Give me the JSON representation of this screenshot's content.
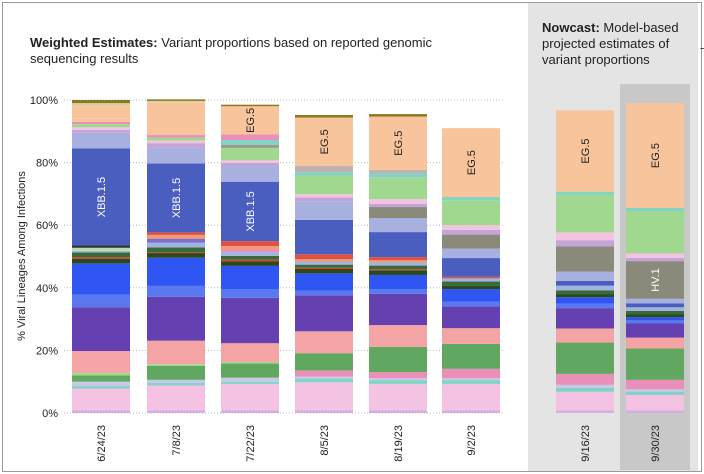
{
  "titles": {
    "left_bold": "Weighted Estimates:",
    "left_rest": " Variant proportions based on reported genomic sequencing results",
    "right_bold": "Nowcast:",
    "right_rest": " Model-based projected estimates of variant proportions",
    "stray_mark": "-"
  },
  "chart_data": {
    "type": "bar",
    "stacked": true,
    "orientation": "vertical",
    "ylabel": "% Viral Lineages Among Infections",
    "ylim": [
      0,
      100
    ],
    "yticks": [
      "0%",
      "20%",
      "40%",
      "60%",
      "80%",
      "100%"
    ],
    "grid": "horizontal dotted",
    "categories": [
      "6/24/23",
      "7/8/23",
      "7/22/23",
      "8/5/23",
      "8/19/23",
      "9/2/23",
      "9/16/23",
      "9/30/23"
    ],
    "groups": [
      {
        "label": "weighted_estimates",
        "categories": [
          "6/24/23",
          "7/8/23",
          "7/22/23",
          "8/5/23",
          "8/19/23",
          "9/2/23"
        ]
      },
      {
        "label": "nowcast",
        "categories": [
          "9/16/23",
          "9/30/23"
        ]
      }
    ],
    "bars": [
      {
        "category": "6/24/23",
        "segments": [
          {
            "value": 0.8,
            "color": "#d4b0e0"
          },
          {
            "value": 7.0,
            "color": "#f4c2e2"
          },
          {
            "value": 0.8,
            "color": "#7fd4c4"
          },
          {
            "value": 1.4,
            "color": "#c8c8ea"
          },
          {
            "value": 2.0,
            "color": "#60a860"
          },
          {
            "value": 0.8,
            "color": "#a0d890"
          },
          {
            "value": 7.0,
            "color": "#f4a4a4"
          },
          {
            "value": 14.0,
            "color": "#6540b0"
          },
          {
            "value": 4.0,
            "color": "#5a78f0"
          },
          {
            "value": 10.0,
            "color": "#2f56f2"
          },
          {
            "value": 1.5,
            "color": "#2a4a1e"
          },
          {
            "value": 0.5,
            "color": "#d83c2e"
          },
          {
            "value": 1.5,
            "color": "#3a6a3a"
          },
          {
            "value": 0.5,
            "color": "#9fb4e0"
          },
          {
            "value": 1.0,
            "color": "#b7e0a8"
          },
          {
            "value": 0.7,
            "color": "#2e2e2e"
          },
          {
            "value": 31.0,
            "color": "#4a5ec0",
            "label": "XBB.1.5"
          },
          {
            "value": 5.0,
            "color": "#a8b0e0"
          },
          {
            "value": 1.0,
            "color": "#c4a4d4"
          },
          {
            "value": 0.8,
            "color": "#f4c2e2"
          },
          {
            "value": 1.0,
            "color": "#a0d890"
          },
          {
            "value": 0.7,
            "color": "#ea8fb8"
          },
          {
            "value": 1.0,
            "color": "#f8c49c"
          },
          {
            "value": 4.0,
            "color": "#f8c49c"
          },
          {
            "value": 1.0,
            "color": "#dcd0a0"
          },
          {
            "value": 1.0,
            "color": "#8a7a20"
          }
        ]
      },
      {
        "category": "7/8/23",
        "segments": [
          {
            "value": 0.8,
            "color": "#d4b0e0"
          },
          {
            "value": 8.0,
            "color": "#f4c2e2"
          },
          {
            "value": 0.8,
            "color": "#7fd4c4"
          },
          {
            "value": 1.0,
            "color": "#c8c8ea"
          },
          {
            "value": 4.5,
            "color": "#60a860"
          },
          {
            "value": 0.5,
            "color": "#a0d890"
          },
          {
            "value": 7.5,
            "color": "#f4a4a4"
          },
          {
            "value": 14.0,
            "color": "#6540b0"
          },
          {
            "value": 3.5,
            "color": "#5a78f0"
          },
          {
            "value": 9.0,
            "color": "#2f56f2"
          },
          {
            "value": 1.5,
            "color": "#2a4a1e"
          },
          {
            "value": 0.3,
            "color": "#d83c2e"
          },
          {
            "value": 1.5,
            "color": "#3a6a3a"
          },
          {
            "value": 1.5,
            "color": "#9fb4e0"
          },
          {
            "value": 1.3,
            "color": "#7d6fd0"
          },
          {
            "value": 1.2,
            "color": "#f49a70"
          },
          {
            "value": 0.8,
            "color": "#e05040"
          },
          {
            "value": 22.0,
            "color": "#4a5ec0",
            "label": "XBB.1.5"
          },
          {
            "value": 5.0,
            "color": "#a8b0e0"
          },
          {
            "value": 1.5,
            "color": "#c4a4d4"
          },
          {
            "value": 0.8,
            "color": "#f4c2e2"
          },
          {
            "value": 1.0,
            "color": "#a0d890"
          },
          {
            "value": 0.8,
            "color": "#ea8fb8"
          },
          {
            "value": 10.5,
            "color": "#f8c49c"
          },
          {
            "value": 0.4,
            "color": "#dcd0a0"
          },
          {
            "value": 0.5,
            "color": "#8a7a20"
          }
        ]
      },
      {
        "category": "7/22/23",
        "segments": [
          {
            "value": 0.8,
            "color": "#d4b0e0"
          },
          {
            "value": 8.5,
            "color": "#f4c2e2"
          },
          {
            "value": 0.7,
            "color": "#7fd4c4"
          },
          {
            "value": 1.3,
            "color": "#c8c8ea"
          },
          {
            "value": 4.5,
            "color": "#60a860"
          },
          {
            "value": 0.5,
            "color": "#a0d890"
          },
          {
            "value": 6.0,
            "color": "#f4a4a4"
          },
          {
            "value": 14.5,
            "color": "#6540b0"
          },
          {
            "value": 2.7,
            "color": "#5a78f0"
          },
          {
            "value": 7.5,
            "color": "#2f56f2"
          },
          {
            "value": 1.5,
            "color": "#2a4a1e"
          },
          {
            "value": 0.5,
            "color": "#d83c2e"
          },
          {
            "value": 1.2,
            "color": "#3a6a3a"
          },
          {
            "value": 1.2,
            "color": "#9fb4e0"
          },
          {
            "value": 1.0,
            "color": "#ea8fb8"
          },
          {
            "value": 0.9,
            "color": "#f49a70"
          },
          {
            "value": 1.6,
            "color": "#e05040"
          },
          {
            "value": 19.0,
            "color": "#4a5ec0",
            "label": "XBB.1.5"
          },
          {
            "value": 5.0,
            "color": "#a8b0e0"
          },
          {
            "value": 1.0,
            "color": "#c4a4d4"
          },
          {
            "value": 0.8,
            "color": "#f4c2e2"
          },
          {
            "value": 4.0,
            "color": "#a0d890"
          },
          {
            "value": 1.0,
            "color": "#9a9a8a"
          },
          {
            "value": 1.5,
            "color": "#7fd4c4"
          },
          {
            "value": 1.8,
            "color": "#ea8fb8"
          },
          {
            "value": 9.0,
            "color": "#f8c49c",
            "label": "EG.5",
            "label_dark": true
          },
          {
            "value": 0.5,
            "color": "#8a7a20"
          }
        ]
      },
      {
        "category": "8/5/23",
        "segments": [
          {
            "value": 0.8,
            "color": "#d4b0e0"
          },
          {
            "value": 9.0,
            "color": "#f4c2e2"
          },
          {
            "value": 1.2,
            "color": "#7fd4c4"
          },
          {
            "value": 0.6,
            "color": "#c8c8ea"
          },
          {
            "value": 2.0,
            "color": "#ea8fb8"
          },
          {
            "value": 5.5,
            "color": "#60a860"
          },
          {
            "value": 7.0,
            "color": "#f4a4a4"
          },
          {
            "value": 11.5,
            "color": "#6540b0"
          },
          {
            "value": 1.5,
            "color": "#5a78f0"
          },
          {
            "value": 5.5,
            "color": "#2f56f2"
          },
          {
            "value": 1.4,
            "color": "#2a4a1e"
          },
          {
            "value": 0.4,
            "color": "#d83c2e"
          },
          {
            "value": 1.0,
            "color": "#3a6a3a"
          },
          {
            "value": 1.0,
            "color": "#9fb4e0"
          },
          {
            "value": 0.8,
            "color": "#f49a70"
          },
          {
            "value": 1.5,
            "color": "#e05040"
          },
          {
            "value": 11.0,
            "color": "#4a5ec0"
          },
          {
            "value": 6.0,
            "color": "#a8b0e0"
          },
          {
            "value": 1.2,
            "color": "#c4a4d4"
          },
          {
            "value": 1.0,
            "color": "#f4c2e2"
          },
          {
            "value": 6.0,
            "color": "#a0d890"
          },
          {
            "value": 1.0,
            "color": "#7fd4c4"
          },
          {
            "value": 2.0,
            "color": "#c0b0b0"
          },
          {
            "value": 15.5,
            "color": "#f8c49c",
            "label": "EG.5",
            "label_dark": true
          },
          {
            "value": 0.8,
            "color": "#8a7a20"
          }
        ]
      },
      {
        "category": "8/19/23",
        "segments": [
          {
            "value": 0.8,
            "color": "#d4b0e0"
          },
          {
            "value": 8.5,
            "color": "#f4c2e2"
          },
          {
            "value": 1.2,
            "color": "#7fd4c4"
          },
          {
            "value": 0.6,
            "color": "#c8c8ea"
          },
          {
            "value": 2.0,
            "color": "#ea8fb8"
          },
          {
            "value": 8.0,
            "color": "#60a860"
          },
          {
            "value": 7.0,
            "color": "#f4a4a4"
          },
          {
            "value": 10.0,
            "color": "#6540b0"
          },
          {
            "value": 1.5,
            "color": "#5a78f0"
          },
          {
            "value": 4.5,
            "color": "#2f56f2"
          },
          {
            "value": 1.5,
            "color": "#2a4a1e"
          },
          {
            "value": 0.3,
            "color": "#d83c2e"
          },
          {
            "value": 1.2,
            "color": "#3a6a3a"
          },
          {
            "value": 1.0,
            "color": "#9fb4e0"
          },
          {
            "value": 0.7,
            "color": "#f49a70"
          },
          {
            "value": 1.0,
            "color": "#e05040"
          },
          {
            "value": 8.0,
            "color": "#4a5ec0"
          },
          {
            "value": 4.5,
            "color": "#a8b0e0"
          },
          {
            "value": 3.5,
            "color": "#8a8a7a"
          },
          {
            "value": 1.0,
            "color": "#c4a4d4"
          },
          {
            "value": 1.5,
            "color": "#f4c2e2"
          },
          {
            "value": 7.0,
            "color": "#a0d890"
          },
          {
            "value": 1.2,
            "color": "#7fd4c4"
          },
          {
            "value": 1.2,
            "color": "#c0b0b0"
          },
          {
            "value": 17.0,
            "color": "#f8c49c",
            "label": "EG.5",
            "label_dark": true
          },
          {
            "value": 0.8,
            "color": "#8a7a20"
          }
        ]
      },
      {
        "category": "9/2/23",
        "segments": [
          {
            "value": 0.8,
            "color": "#d4b0e0"
          },
          {
            "value": 8.5,
            "color": "#f4c2e2"
          },
          {
            "value": 1.2,
            "color": "#7fd4c4"
          },
          {
            "value": 0.6,
            "color": "#c8c8ea"
          },
          {
            "value": 3.0,
            "color": "#ea8fb8"
          },
          {
            "value": 8.0,
            "color": "#60a860"
          },
          {
            "value": 5.0,
            "color": "#f4a4a4"
          },
          {
            "value": 7.0,
            "color": "#6540b0"
          },
          {
            "value": 1.5,
            "color": "#5a78f0"
          },
          {
            "value": 4.0,
            "color": "#2f56f2"
          },
          {
            "value": 1.0,
            "color": "#2a4a1e"
          },
          {
            "value": 1.4,
            "color": "#3a6a3a"
          },
          {
            "value": 1.0,
            "color": "#9fb4e0"
          },
          {
            "value": 0.5,
            "color": "#e05040"
          },
          {
            "value": 6.0,
            "color": "#4a5ec0"
          },
          {
            "value": 3.0,
            "color": "#a8b0e0"
          },
          {
            "value": 4.5,
            "color": "#8a8a7a"
          },
          {
            "value": 1.5,
            "color": "#c4a4d4"
          },
          {
            "value": 1.5,
            "color": "#f4c2e2"
          },
          {
            "value": 8.0,
            "color": "#a0d890"
          },
          {
            "value": 1.0,
            "color": "#7fd4c4"
          },
          {
            "value": 22.0,
            "color": "#f8c49c",
            "label": "EG.5",
            "label_dark": true
          }
        ]
      },
      {
        "category": "9/16/23",
        "segments": [
          {
            "value": 0.8,
            "color": "#d4b0e0"
          },
          {
            "value": 6.0,
            "color": "#f4c2e2"
          },
          {
            "value": 1.2,
            "color": "#7fd4c4"
          },
          {
            "value": 1.0,
            "color": "#c8c8ea"
          },
          {
            "value": 3.5,
            "color": "#ea8fb8"
          },
          {
            "value": 10.0,
            "color": "#60a860"
          },
          {
            "value": 4.5,
            "color": "#f4a4a4"
          },
          {
            "value": 6.5,
            "color": "#6540b0"
          },
          {
            "value": 1.5,
            "color": "#5a78f0"
          },
          {
            "value": 2.0,
            "color": "#2f56f2"
          },
          {
            "value": 1.0,
            "color": "#2a4a1e"
          },
          {
            "value": 1.2,
            "color": "#3a6a3a"
          },
          {
            "value": 1.5,
            "color": "#9fb4e0"
          },
          {
            "value": 1.5,
            "color": "#4a5ec0"
          },
          {
            "value": 3.0,
            "color": "#a8b0e0"
          },
          {
            "value": 8.0,
            "color": "#8a8a7a"
          },
          {
            "value": 2.0,
            "color": "#c4a4d4"
          },
          {
            "value": 2.5,
            "color": "#f4c2e2"
          },
          {
            "value": 12.0,
            "color": "#a0d890"
          },
          {
            "value": 1.0,
            "color": "#7fd4c4"
          },
          {
            "value": 26.0,
            "color": "#f8c49c",
            "label": "EG.5",
            "label_dark": true
          }
        ]
      },
      {
        "category": "9/30/23",
        "segments": [
          {
            "value": 0.8,
            "color": "#d4b0e0"
          },
          {
            "value": 5.0,
            "color": "#f4c2e2"
          },
          {
            "value": 1.0,
            "color": "#7fd4c4"
          },
          {
            "value": 0.8,
            "color": "#c8c8ea"
          },
          {
            "value": 3.0,
            "color": "#ea8fb8"
          },
          {
            "value": 10.0,
            "color": "#60a860"
          },
          {
            "value": 3.5,
            "color": "#f4a4a4"
          },
          {
            "value": 4.5,
            "color": "#6540b0"
          },
          {
            "value": 1.0,
            "color": "#5a78f0"
          },
          {
            "value": 1.0,
            "color": "#2f56f2"
          },
          {
            "value": 1.0,
            "color": "#2a4a1e"
          },
          {
            "value": 1.0,
            "color": "#3a6a3a"
          },
          {
            "value": 1.2,
            "color": "#9fb4e0"
          },
          {
            "value": 1.2,
            "color": "#4a5ec0"
          },
          {
            "value": 1.5,
            "color": "#a8b0e0"
          },
          {
            "value": 12.0,
            "color": "#8a8a7a",
            "label": "HV.1"
          },
          {
            "value": 1.0,
            "color": "#c4a4d4"
          },
          {
            "value": 1.5,
            "color": "#f4c2e2"
          },
          {
            "value": 13.5,
            "color": "#a0d890"
          },
          {
            "value": 1.0,
            "color": "#7fd4c4"
          },
          {
            "value": 33.5,
            "color": "#f8c49c",
            "label": "EG.5",
            "label_dark": true
          }
        ]
      }
    ]
  }
}
